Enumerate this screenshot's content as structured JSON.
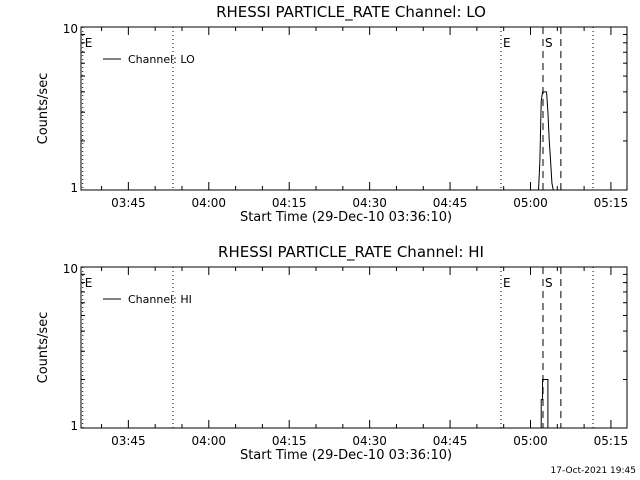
{
  "timestamp": "17-Oct-2021 19:45",
  "chart_data": [
    {
      "type": "line",
      "title": "RHESSI PARTICLE_RATE Channel: LO",
      "xlabel": "Start Time (29-Dec-10 03:36:10)",
      "ylabel": "Counts/sec",
      "yscale": "log",
      "ylim": [
        1,
        10
      ],
      "ytick_labels": [
        "1",
        "10"
      ],
      "xlim": [
        "03:36:10",
        "05:18:00"
      ],
      "xtick_labels": [
        "03:45",
        "04:00",
        "04:15",
        "04:30",
        "04:45",
        "05:00",
        "05:15"
      ],
      "legend": {
        "label": "Channel: LO",
        "placement": "top-left"
      },
      "markers": [
        {
          "time": "03:36:30",
          "label": "E",
          "style": "dotted"
        },
        {
          "time": "03:53:20",
          "label": "",
          "style": "dotted"
        },
        {
          "time": "04:54:30",
          "label": "E",
          "style": "dotted"
        },
        {
          "time": "05:02:20",
          "label": "S",
          "style": "dashed"
        },
        {
          "time": "05:05:40",
          "label": "",
          "style": "dashed"
        },
        {
          "time": "05:11:40",
          "label": "",
          "style": "dotted"
        }
      ],
      "series": [
        {
          "name": "Channel: LO",
          "x": [
            "05:01:30",
            "05:01:45",
            "05:02:00",
            "05:02:15",
            "05:02:30",
            "05:02:45",
            "05:03:00",
            "05:03:15",
            "05:03:30",
            "05:03:45",
            "05:04:00",
            "05:04:15",
            "05:04:30"
          ],
          "y": [
            1,
            1.5,
            3.5,
            4.0,
            4.0,
            4.0,
            4.0,
            3.0,
            2.0,
            1.5,
            1.1,
            1,
            1
          ]
        }
      ]
    },
    {
      "type": "line",
      "title": "RHESSI PARTICLE_RATE Channel: HI",
      "xlabel": "Start Time (29-Dec-10 03:36:10)",
      "ylabel": "Counts/sec",
      "yscale": "log",
      "ylim": [
        1,
        10
      ],
      "ytick_labels": [
        "1",
        "10"
      ],
      "xlim": [
        "03:36:10",
        "05:18:00"
      ],
      "xtick_labels": [
        "03:45",
        "04:00",
        "04:15",
        "04:30",
        "04:45",
        "05:00",
        "05:15"
      ],
      "legend": {
        "label": "Channel: HI",
        "placement": "top-left"
      },
      "markers": [
        {
          "time": "03:36:30",
          "label": "E",
          "style": "dotted"
        },
        {
          "time": "03:53:20",
          "label": "",
          "style": "dotted"
        },
        {
          "time": "04:54:30",
          "label": "E",
          "style": "dotted"
        },
        {
          "time": "05:02:20",
          "label": "S",
          "style": "dashed"
        },
        {
          "time": "05:05:40",
          "label": "",
          "style": "dashed"
        },
        {
          "time": "05:11:40",
          "label": "",
          "style": "dotted"
        }
      ],
      "series": [
        {
          "name": "Channel: HI",
          "x": [
            "05:02:00",
            "05:02:00",
            "05:02:15",
            "05:02:15",
            "05:02:30",
            "05:02:30",
            "05:02:45",
            "05:02:45",
            "05:03:00",
            "05:03:00",
            "05:03:15",
            "05:03:15",
            "05:03:30",
            "05:03:30",
            "05:03:45"
          ],
          "y": [
            1,
            1.5,
            1.5,
            2,
            2,
            2,
            2,
            2,
            2,
            2,
            2,
            1,
            1,
            1,
            1
          ]
        }
      ]
    }
  ]
}
